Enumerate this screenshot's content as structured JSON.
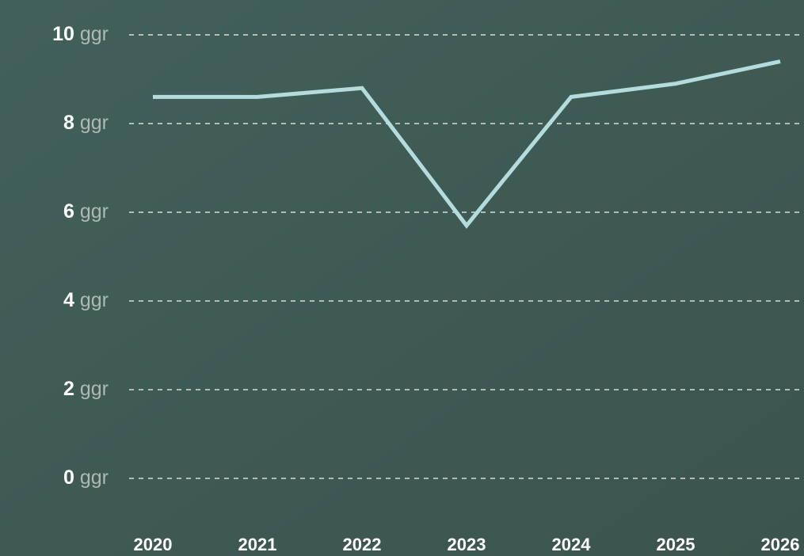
{
  "chart_data": {
    "type": "line",
    "categories": [
      "2020",
      "2021",
      "2022",
      "2023",
      "2024",
      "2025",
      "2026"
    ],
    "series": [
      {
        "name": "",
        "color": "#b4dcdc",
        "values": [
          8.6,
          8.6,
          8.8,
          5.7,
          8.6,
          8.9,
          9.4
        ]
      }
    ],
    "ylim": [
      0,
      10
    ],
    "yticks": [
      {
        "value": 0,
        "label": "0 ggr"
      },
      {
        "value": 2,
        "label": "2 ggr"
      },
      {
        "value": 4,
        "label": "4 ggr"
      },
      {
        "value": 6,
        "label": "6 ggr"
      },
      {
        "value": 8,
        "label": "8 ggr"
      },
      {
        "value": 10,
        "label": "10 ggr"
      }
    ],
    "grid": true
  }
}
